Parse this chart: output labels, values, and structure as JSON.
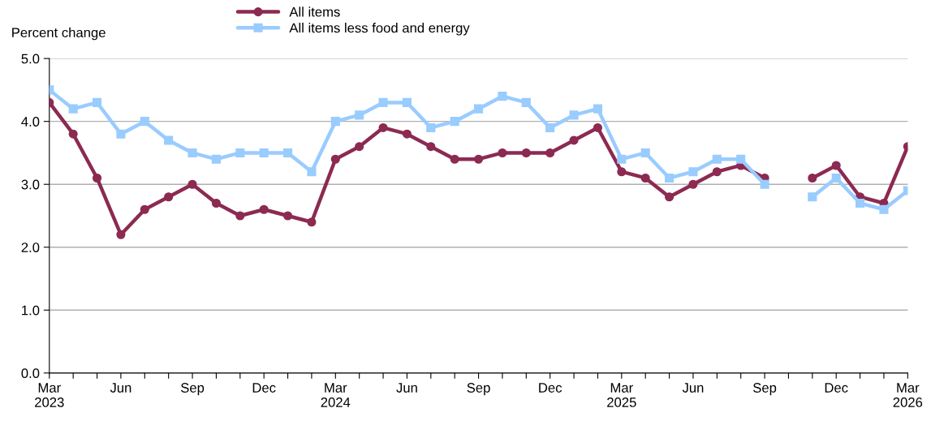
{
  "chart_data": {
    "type": "line",
    "ylabel": "Percent change",
    "categories": [
      "Mar\n2023",
      null,
      null,
      "Jun",
      null,
      null,
      "Sep",
      null,
      null,
      "Dec",
      null,
      null,
      "Mar\n2024",
      null,
      null,
      "Jun",
      null,
      null,
      "Sep",
      null,
      null,
      "Dec",
      null,
      null,
      "Mar\n2025",
      null,
      null,
      "Jun",
      null,
      null,
      "Sep",
      null,
      null,
      "Dec",
      null,
      null,
      "Mar\n2026"
    ],
    "series": [
      {
        "name": "All items",
        "color": "#8c2a52",
        "marker": "circle",
        "values": [
          4.3,
          3.8,
          3.1,
          2.2,
          2.6,
          2.8,
          3.0,
          2.7,
          2.5,
          2.6,
          2.5,
          2.4,
          3.4,
          3.6,
          3.9,
          3.8,
          3.6,
          3.4,
          3.4,
          3.5,
          3.5,
          3.5,
          3.7,
          3.9,
          3.2,
          3.1,
          2.8,
          3.0,
          3.2,
          3.3,
          3.1,
          null,
          3.1,
          3.3,
          2.8,
          2.7,
          3.6
        ]
      },
      {
        "name": "All items less food and energy",
        "color": "#99ccff",
        "marker": "square",
        "values": [
          4.5,
          4.2,
          4.3,
          3.8,
          4.0,
          3.7,
          3.5,
          3.4,
          3.5,
          3.5,
          3.5,
          3.2,
          4.0,
          4.1,
          4.3,
          4.3,
          3.9,
          4.0,
          4.2,
          4.4,
          4.3,
          3.9,
          4.1,
          4.2,
          3.4,
          3.5,
          3.1,
          3.2,
          3.4,
          3.4,
          3.0,
          null,
          2.8,
          3.1,
          2.7,
          2.6,
          2.9
        ]
      }
    ],
    "ylim": [
      0,
      5
    ],
    "yticks": [
      {
        "value": 0,
        "label": "0.0"
      },
      {
        "value": 1,
        "label": "1.0"
      },
      {
        "value": 2,
        "label": "2.0"
      },
      {
        "value": 3,
        "label": "3.0"
      },
      {
        "value": 4,
        "label": "4.0"
      },
      {
        "value": 5,
        "label": "5.0"
      }
    ],
    "grid": "y",
    "legend": "top",
    "line_style": "solid"
  }
}
